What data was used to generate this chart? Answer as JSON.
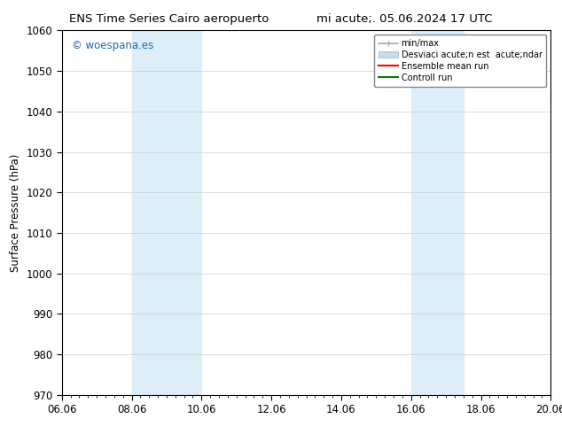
{
  "title_left": "ENS Time Series Cairo aeropuerto",
  "title_right": "mi acute;. 05.06.2024 17 UTC",
  "ylabel": "Surface Pressure (hPa)",
  "ylim": [
    970,
    1060
  ],
  "yticks": [
    970,
    980,
    990,
    1000,
    1010,
    1020,
    1030,
    1040,
    1050,
    1060
  ],
  "xticks_labels": [
    "06.06",
    "08.06",
    "10.06",
    "12.06",
    "14.06",
    "16.06",
    "18.06",
    "20.06"
  ],
  "xticks_pos": [
    0,
    2,
    4,
    6,
    8,
    10,
    12,
    14
  ],
  "shaded_bands": [
    {
      "xstart": 2,
      "xend": 4
    },
    {
      "xstart": 10,
      "xend": 11.5
    }
  ],
  "shade_color": "#ddeef8",
  "watermark_text": "© woespana.es",
  "watermark_color": "#1a6bb5",
  "legend_label_1": "min/max",
  "legend_label_2": "Desviaci acute;n est  acute;ndar",
  "legend_label_3": "Ensemble mean run",
  "legend_label_4": "Controll run",
  "legend_color_1": "#aaaaaa",
  "legend_color_2": "#c8ddf0",
  "legend_color_3": "red",
  "legend_color_4": "green",
  "bg_color": "#ffffff",
  "grid_color": "#cccccc",
  "font_size": 8.5,
  "title_font_size": 9.5
}
